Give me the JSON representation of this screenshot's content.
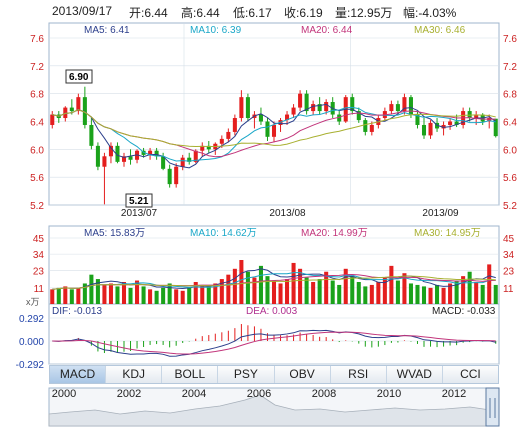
{
  "header": {
    "date": "2013/09/17",
    "open_label": "开:6.44",
    "high_label": "高:6.44",
    "low_label": "低:6.17",
    "close_label": "收:6.19",
    "volume_label": "量:12.95万",
    "change_label": "幅:-4.03%"
  },
  "colors": {
    "up": "#e41e1e",
    "down": "#1aa21a",
    "ma5": "#2c3f8c",
    "ma10": "#1aa7c8",
    "ma20": "#c2357b",
    "ma30": "#a8b030",
    "grid": "#d6dfe8",
    "axis_text": "#cc2222"
  },
  "price_legend": {
    "ma5": "MA5: 6.41",
    "ma10": "MA10: 6.39",
    "ma20": "MA20: 6.44",
    "ma30": "MA30: 6.46"
  },
  "volume_legend": {
    "ma5": "MA5: 15.83万",
    "ma10": "MA10: 14.62万",
    "ma20": "MA20: 14.99万",
    "ma30": "MA30: 14.95万"
  },
  "macd_legend": {
    "dif": "DIF: -0.013",
    "dea": "DEA: 0.003",
    "macd": "MACD: -0.033"
  },
  "annotations": {
    "high_marker": "6.90",
    "low_marker": "5.21"
  },
  "volume_unit": "x万",
  "tabs": [
    "MACD",
    "KDJ",
    "BOLL",
    "PSY",
    "OBV",
    "RSI",
    "WVAD",
    "CCI"
  ],
  "active_tab": "MACD",
  "years": [
    "2000",
    "2002",
    "2004",
    "2006",
    "2008",
    "2010",
    "2012"
  ],
  "chart_data": {
    "type": "candlestick",
    "x_labels": [
      "2013/07",
      "2013/08",
      "2013/09"
    ],
    "price_ticks": [
      "7.6",
      "7.2",
      "6.8",
      "6.4",
      "6.0",
      "5.6",
      "5.2"
    ],
    "price_range": [
      5.2,
      7.6
    ],
    "volume_ticks": [
      "45",
      "34",
      "23",
      "11"
    ],
    "volume_range": [
      0,
      45
    ],
    "macd_ticks": [
      "0.292",
      "0.000",
      "-0.292"
    ],
    "macd_range": [
      -0.292,
      0.292
    ],
    "candles": [
      [
        6.35,
        6.55,
        6.3,
        6.5
      ],
      [
        6.5,
        6.55,
        6.38,
        6.45
      ],
      [
        6.45,
        6.62,
        6.4,
        6.6
      ],
      [
        6.6,
        6.72,
        6.5,
        6.55
      ],
      [
        6.55,
        6.8,
        6.5,
        6.75
      ],
      [
        6.75,
        6.9,
        6.3,
        6.35
      ],
      [
        6.35,
        6.45,
        6.0,
        6.05
      ],
      [
        6.05,
        6.1,
        5.7,
        5.75
      ],
      [
        5.75,
        5.95,
        5.21,
        5.9
      ],
      [
        5.9,
        6.1,
        5.8,
        6.05
      ],
      [
        6.05,
        6.1,
        5.8,
        5.82
      ],
      [
        5.82,
        5.95,
        5.75,
        5.9
      ],
      [
        5.9,
        6.0,
        5.78,
        5.85
      ],
      [
        5.85,
        6.0,
        5.8,
        5.98
      ],
      [
        5.98,
        6.02,
        5.88,
        5.92
      ],
      [
        5.92,
        6.02,
        5.85,
        5.98
      ],
      [
        5.98,
        6.02,
        5.85,
        5.9
      ],
      [
        5.9,
        5.95,
        5.7,
        5.72
      ],
      [
        5.72,
        5.78,
        5.45,
        5.5
      ],
      [
        5.5,
        5.8,
        5.45,
        5.75
      ],
      [
        5.75,
        5.92,
        5.7,
        5.88
      ],
      [
        5.88,
        5.95,
        5.78,
        5.82
      ],
      [
        5.82,
        6.0,
        5.8,
        5.98
      ],
      [
        5.98,
        6.1,
        5.9,
        6.05
      ],
      [
        6.05,
        6.12,
        5.95,
        6.0
      ],
      [
        6.0,
        6.1,
        5.92,
        6.08
      ],
      [
        6.08,
        6.2,
        6.02,
        6.15
      ],
      [
        6.15,
        6.3,
        6.1,
        6.25
      ],
      [
        6.25,
        6.5,
        6.2,
        6.45
      ],
      [
        6.45,
        6.85,
        6.4,
        6.75
      ],
      [
        6.75,
        6.8,
        6.4,
        6.45
      ],
      [
        6.45,
        6.55,
        6.3,
        6.5
      ],
      [
        6.5,
        6.6,
        6.35,
        6.4
      ],
      [
        6.4,
        6.45,
        6.12,
        6.18
      ],
      [
        6.18,
        6.4,
        6.1,
        6.35
      ],
      [
        6.35,
        6.45,
        6.25,
        6.42
      ],
      [
        6.42,
        6.55,
        6.35,
        6.5
      ],
      [
        6.5,
        6.65,
        6.45,
        6.6
      ],
      [
        6.6,
        6.85,
        6.55,
        6.8
      ],
      [
        6.8,
        6.85,
        6.5,
        6.55
      ],
      [
        6.55,
        6.7,
        6.5,
        6.65
      ],
      [
        6.65,
        6.75,
        6.5,
        6.55
      ],
      [
        6.55,
        6.72,
        6.5,
        6.68
      ],
      [
        6.68,
        6.75,
        6.45,
        6.5
      ],
      [
        6.5,
        6.55,
        6.35,
        6.4
      ],
      [
        6.4,
        6.78,
        6.38,
        6.75
      ],
      [
        6.75,
        6.8,
        6.5,
        6.55
      ],
      [
        6.55,
        6.6,
        6.38,
        6.42
      ],
      [
        6.42,
        6.45,
        6.2,
        6.25
      ],
      [
        6.25,
        6.4,
        6.2,
        6.35
      ],
      [
        6.35,
        6.5,
        6.3,
        6.45
      ],
      [
        6.45,
        6.6,
        6.4,
        6.55
      ],
      [
        6.55,
        6.7,
        6.5,
        6.65
      ],
      [
        6.65,
        6.7,
        6.5,
        6.55
      ],
      [
        6.55,
        6.8,
        6.5,
        6.75
      ],
      [
        6.75,
        6.78,
        6.45,
        6.5
      ],
      [
        6.5,
        6.55,
        6.3,
        6.35
      ],
      [
        6.35,
        6.45,
        6.15,
        6.2
      ],
      [
        6.2,
        6.42,
        6.15,
        6.38
      ],
      [
        6.38,
        6.45,
        6.25,
        6.3
      ],
      [
        6.3,
        6.4,
        6.2,
        6.35
      ],
      [
        6.35,
        6.45,
        6.28,
        6.4
      ],
      [
        6.4,
        6.5,
        6.32,
        6.35
      ],
      [
        6.35,
        6.6,
        6.3,
        6.55
      ],
      [
        6.55,
        6.6,
        6.4,
        6.45
      ],
      [
        6.45,
        6.55,
        6.35,
        6.5
      ],
      [
        6.5,
        6.52,
        6.35,
        6.4
      ],
      [
        6.4,
        6.5,
        6.3,
        6.45
      ],
      [
        6.44,
        6.44,
        6.17,
        6.19
      ]
    ],
    "volumes": [
      10,
      11,
      12,
      10,
      11,
      14,
      20,
      17,
      13,
      14,
      12,
      15,
      11,
      16,
      12,
      10,
      9,
      11,
      14,
      10,
      9,
      11,
      15,
      13,
      12,
      14,
      17,
      20,
      24,
      30,
      22,
      18,
      26,
      19,
      16,
      14,
      17,
      28,
      24,
      18,
      15,
      17,
      22,
      16,
      13,
      24,
      19,
      15,
      12,
      13,
      15,
      18,
      26,
      16,
      21,
      14,
      13,
      12,
      11,
      13,
      11,
      14,
      16,
      19,
      22,
      15,
      13,
      27,
      13
    ]
  }
}
